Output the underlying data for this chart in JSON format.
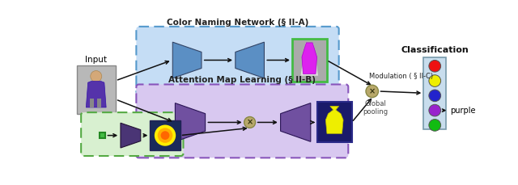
{
  "fig_width": 6.4,
  "fig_height": 2.29,
  "dpi": 100,
  "bg_color": "#ffffff",
  "title_cnn": "Color Naming Network (§ II-A)",
  "title_aml": "Attention Map Learning (§ II-B)",
  "title_cls": "Classification",
  "label_input": "Input",
  "label_modulation": "Modulation ( § II-C)",
  "label_global": "Global\npooling",
  "label_purple": "purple",
  "colors": {
    "blue_box_bg": "#c5ddf5",
    "blue_box_edge": "#5599cc",
    "purple_box_bg": "#d8c8f0",
    "purple_box_edge": "#8855bb",
    "green_box_bg": "#d8f0d0",
    "green_box_edge": "#55aa44",
    "trapezoid_blue": "#5b8fc4",
    "trapezoid_purple": "#7050a0",
    "trapezoid_dark_purple": "#4a3575",
    "multiply_circle": "#b8a86a",
    "cls_box_bg": "#c8dded",
    "cls_box_edge": "#7799aa",
    "red": "#ee1111",
    "yellow": "#eeee00",
    "blue_circle": "#2222cc",
    "purple_circle": "#9922cc",
    "green_circle": "#11bb11",
    "arrow": "#111111"
  }
}
